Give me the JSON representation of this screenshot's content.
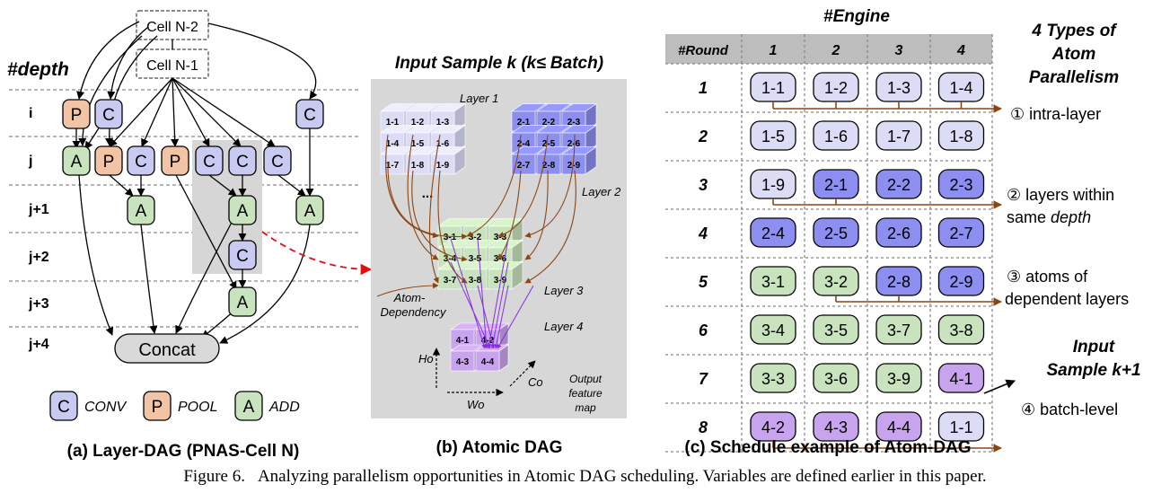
{
  "panel_a": {
    "depth_title": "#depth",
    "cells": {
      "n2": "Cell N-2",
      "n1": "Cell N-1"
    },
    "rows": [
      "i",
      "j",
      "j+1",
      "j+2",
      "j+3",
      "j+4"
    ],
    "nodes": {
      "i_p": "P",
      "i_c1": "C",
      "i_c2": "C",
      "j_a": "A",
      "j_p1": "P",
      "j_c1": "C",
      "j_p2": "P",
      "j_c2": "C",
      "j_c3": "C",
      "j_c4": "C",
      "j1_a1": "A",
      "j1_a2": "A",
      "j1_a3": "A",
      "j2_c": "C",
      "j3_a": "A"
    },
    "concat": "Concat",
    "legend": [
      {
        "letter": "C",
        "label": "CONV"
      },
      {
        "letter": "P",
        "label": "POOL"
      },
      {
        "letter": "A",
        "label": "ADD"
      }
    ],
    "title": "(a) Layer-DAG (PNAS-Cell N)"
  },
  "panel_b": {
    "heading": "Input Sample k (k≤ Batch)",
    "layer_labels": {
      "l1": "Layer 1",
      "l2": "Layer 2",
      "l3": "Layer 3",
      "l4": "Layer 4"
    },
    "layer1_atoms": [
      "1-1",
      "1-2",
      "1-3",
      "1-4",
      "1-5",
      "1-6",
      "1-7",
      "1-8",
      "1-9"
    ],
    "layer2_atoms": [
      "2-1",
      "2-2",
      "2-3",
      "2-4",
      "2-5",
      "2-6",
      "2-7",
      "2-8",
      "2-9"
    ],
    "layer3_atoms": [
      "3-1",
      "3-2",
      "3-3",
      "3-4",
      "3-5",
      "3-6",
      "3-7",
      "3-8",
      "3-9"
    ],
    "layer4_atoms": [
      "4-1",
      "4-2",
      "4-3",
      "4-4"
    ],
    "ellipsis": "...",
    "dependency_label": [
      "Atom-",
      "Dependency"
    ],
    "axis": {
      "ho": "Ho",
      "wo": "Wo",
      "co": "Co"
    },
    "output_label": [
      "Output",
      "feature",
      "map"
    ],
    "title": "(b) Atomic DAG"
  },
  "panel_c": {
    "engine_label": "#Engine",
    "round_label": "#Round",
    "engines": [
      "1",
      "2",
      "3",
      "4"
    ],
    "rounds": [
      {
        "n": "1",
        "atoms": [
          "1-1",
          "1-2",
          "1-3",
          "1-4"
        ]
      },
      {
        "n": "2",
        "atoms": [
          "1-5",
          "1-6",
          "1-7",
          "1-8"
        ]
      },
      {
        "n": "3",
        "atoms": [
          "1-9",
          "2-1",
          "2-2",
          "2-3"
        ]
      },
      {
        "n": "4",
        "atoms": [
          "2-4",
          "2-5",
          "2-6",
          "2-7"
        ]
      },
      {
        "n": "5",
        "atoms": [
          "3-1",
          "3-2",
          "2-8",
          "2-9"
        ]
      },
      {
        "n": "6",
        "atoms": [
          "3-4",
          "3-5",
          "3-7",
          "3-8"
        ]
      },
      {
        "n": "7",
        "atoms": [
          "3-3",
          "3-6",
          "3-9",
          "4-1"
        ]
      },
      {
        "n": "8",
        "atoms": [
          "4-2",
          "4-3",
          "4-4",
          "1-1"
        ]
      }
    ],
    "types_title": [
      "4 Types of",
      "Atom",
      "Parallelism"
    ],
    "types": [
      {
        "lines": [
          "① intra-layer"
        ]
      },
      {
        "lines": [
          "② layers within",
          "same depth"
        ]
      },
      {
        "lines": [
          "③ atoms of",
          "dependent layers"
        ]
      },
      {
        "lines": [
          "④ batch-level"
        ]
      }
    ],
    "next_sample": [
      "Input",
      "Sample k+1"
    ],
    "title": "(c) Schedule example of Atom-DAG"
  },
  "caption": {
    "label": "Figure 6.",
    "text": "Analyzing parallelism opportunities in Atomic DAG scheduling. Variables are defined earlier in this paper."
  },
  "colors": {
    "conv": "#c9caf2",
    "pool": "#f2c3a4",
    "add": "#c8e3bd",
    "layer1": "#dcdcf7",
    "layer2": "#8c8ef0",
    "layer3": "#c8e3bd",
    "layer4": "#c9a4ee",
    "arrow": "#8b4513",
    "dep_red": "#e01010"
  }
}
